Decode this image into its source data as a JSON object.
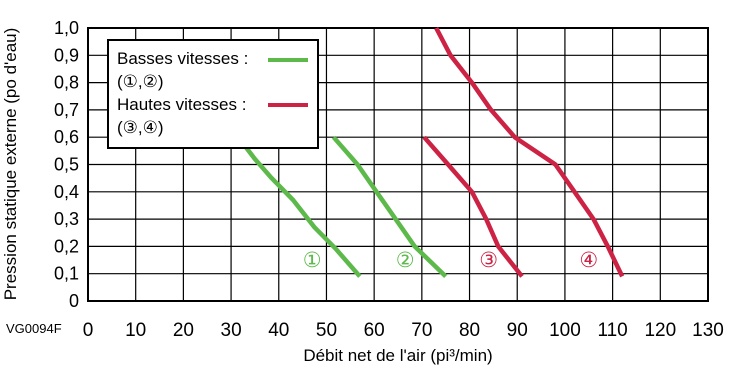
{
  "chart_data": {
    "type": "line",
    "title": "",
    "xlabel": "Débit net de l'air (pi³/min)",
    "ylabel": "Pression statique externe (po d'eau)",
    "xlim": [
      0,
      130
    ],
    "ylim": [
      0,
      1.0
    ],
    "x_ticks": [
      "0",
      "10",
      "20",
      "30",
      "40",
      "50",
      "60",
      "70",
      "80",
      "90",
      "100",
      "110",
      "120",
      "130"
    ],
    "y_ticks": [
      "0",
      "0,1",
      "0,2",
      "0,3",
      "0,4",
      "0,5",
      "0,6",
      "0,7",
      "0,8",
      "0,9",
      "1,0"
    ],
    "grid": true,
    "figure_id": "VG0094F",
    "legend": {
      "position": "top-left",
      "entries": [
        {
          "line1": "Basses vitesses :",
          "line2": "(①,②)",
          "color": "#5cb94a"
        },
        {
          "line1": "Hautes vitesses :",
          "line2": "(③,④)",
          "color": "#cc2244"
        }
      ]
    },
    "series": [
      {
        "label": "①",
        "group": "low",
        "color": "#5cb94a",
        "label_at": [
          47,
          0.15
        ],
        "points": [
          [
            31.5,
            0.6
          ],
          [
            35,
            0.52
          ],
          [
            38.5,
            0.45
          ],
          [
            43,
            0.37
          ],
          [
            47.5,
            0.27
          ],
          [
            52,
            0.19
          ],
          [
            57,
            0.09
          ]
        ]
      },
      {
        "label": "②",
        "group": "low",
        "color": "#5cb94a",
        "label_at": [
          66.5,
          0.15
        ],
        "points": [
          [
            51.5,
            0.6
          ],
          [
            56.5,
            0.5
          ],
          [
            60.5,
            0.4
          ],
          [
            64.5,
            0.3
          ],
          [
            68.5,
            0.2
          ],
          [
            75,
            0.09
          ]
        ]
      },
      {
        "label": "③",
        "group": "high",
        "color": "#cc2244",
        "label_at": [
          84,
          0.15
        ],
        "points": [
          [
            70.5,
            0.6
          ],
          [
            75.5,
            0.5
          ],
          [
            80.5,
            0.4
          ],
          [
            83.5,
            0.3
          ],
          [
            86,
            0.2
          ],
          [
            91,
            0.09
          ]
        ]
      },
      {
        "label": "④",
        "group": "high",
        "color": "#cc2244",
        "label_at": [
          105,
          0.15
        ],
        "points": [
          [
            73,
            1.0
          ],
          [
            76,
            0.9
          ],
          [
            80.5,
            0.8
          ],
          [
            84.5,
            0.7
          ],
          [
            89.5,
            0.6
          ],
          [
            98,
            0.5
          ],
          [
            102,
            0.4
          ],
          [
            106,
            0.3
          ],
          [
            109,
            0.2
          ],
          [
            112,
            0.09
          ]
        ]
      }
    ]
  }
}
